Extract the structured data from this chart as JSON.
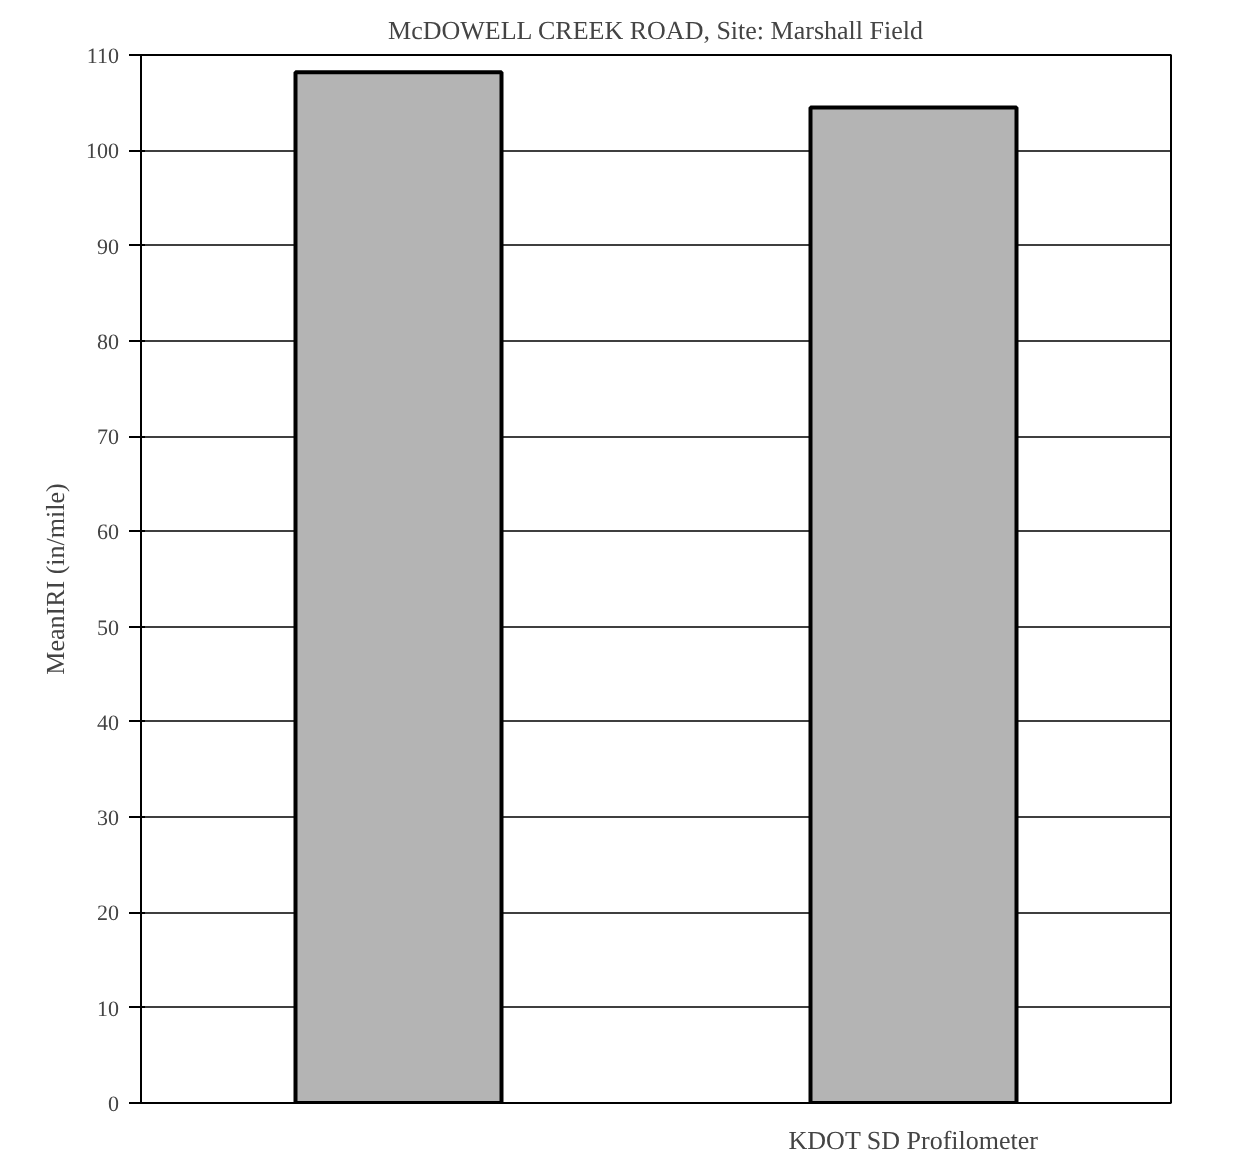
{
  "chart_data": {
    "type": "bar",
    "title": "McDOWELL CREEK ROAD, Site: Marshall Field",
    "ylabel": "MeanIRI (in/mile)",
    "categories": [
      null,
      "KDOT SD Profilometer"
    ],
    "values": [
      108.2,
      104.5
    ],
    "color": "#b4b4b4",
    "ylim": [
      0,
      110
    ],
    "yticks": [
      0,
      10,
      20,
      30,
      40,
      50,
      60,
      70,
      80,
      90,
      100,
      110
    ],
    "grid": "y"
  }
}
